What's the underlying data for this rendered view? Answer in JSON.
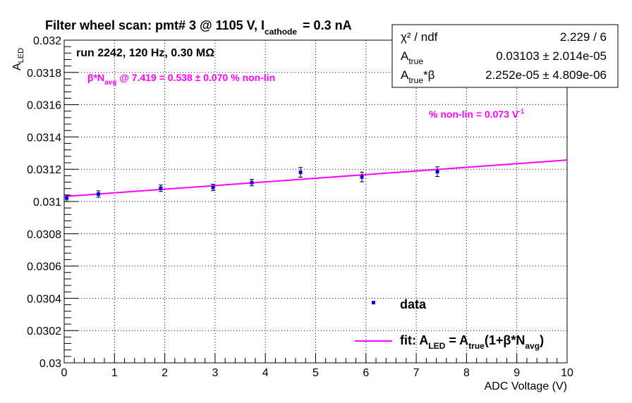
{
  "chart_data": {
    "type": "scatter",
    "title": "Filter wheel scan: pmt#   3 @  1105 V, I",
    "title_sub": "cathode",
    "title_tail": "= 0.3 nA",
    "xlabel": "ADC Voltage (V)",
    "ylabel_main": "A",
    "ylabel_sub": "LED",
    "xlim": [
      0,
      10
    ],
    "ylim": [
      0.03,
      0.032
    ],
    "x_ticks": [
      "0",
      "1",
      "2",
      "3",
      "4",
      "5",
      "6",
      "7",
      "8",
      "9",
      "10"
    ],
    "y_ticks": [
      "0.03",
      "0.0302",
      "0.0304",
      "0.0306",
      "0.0308",
      "0.031",
      "0.0312",
      "0.0314",
      "0.0316",
      "0.0318",
      "0.032"
    ],
    "grid": true,
    "series": [
      {
        "name": "data",
        "color": "#0000ff",
        "x": [
          0.05,
          0.68,
          1.92,
          2.96,
          3.73,
          4.7,
          5.92,
          7.42
        ],
        "y": [
          0.031021,
          0.031046,
          0.031082,
          0.031087,
          0.031117,
          0.031181,
          0.031152,
          0.031185
        ],
        "yerr": [
          2e-05,
          2e-05,
          2e-05,
          2e-05,
          2e-05,
          3e-05,
          3e-05,
          3e-05
        ]
      }
    ],
    "fit": {
      "color": "#ff00ff",
      "x": [
        0,
        10
      ],
      "y": [
        0.031031,
        0.031257
      ]
    },
    "legend": {
      "position": "bottom-right",
      "data_label": "data",
      "fit_label_prefix": "fit: A",
      "fit_sub1": "LED",
      "fit_mid": " = A",
      "fit_sub2": "true",
      "fit_mid2": "(1+β*N",
      "fit_sub3": "avg",
      "fit_tail": ")"
    },
    "stats": {
      "chi2_label": "χ² / ndf",
      "chi2_value": "2.229 / 6",
      "a_label": "A",
      "a_sub": "true",
      "a_value": "0.03103 ± 2.014e-05",
      "ab_label": "A",
      "ab_sub": "true",
      "ab_tail": "*β",
      "ab_value": "2.252e-05 ± 4.809e-06"
    },
    "annotations": {
      "run": "run 2242, 120 Hz, 0.30 MΩ",
      "beta_prefix": "β*N",
      "beta_sub": "avg",
      "beta_tail": " @ 7.419 = 0.538 ± 0.070 % non-lin",
      "nonlin_prefix": "% non-lin = 0.073 V",
      "nonlin_sup": "-1"
    }
  }
}
